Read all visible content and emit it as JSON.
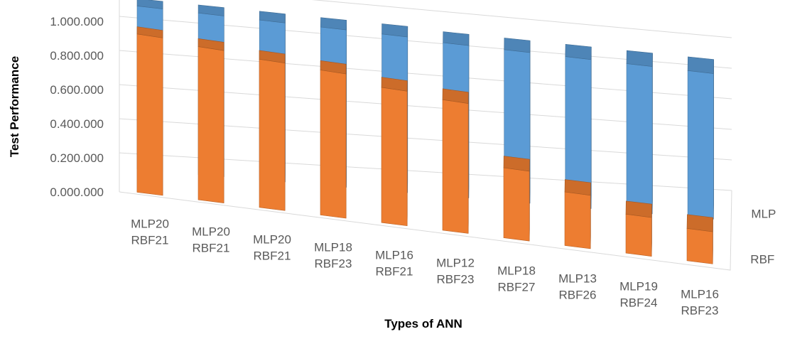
{
  "chart_data": {
    "type": "bar",
    "title": "",
    "xlabel": "Types of ANN",
    "ylabel": "Test Performance",
    "ylim": [
      0,
      1
    ],
    "yticks": [
      "0.000.000",
      "0.200.000",
      "0.400.000",
      "0.600.000",
      "0.800.000",
      "1.000.000"
    ],
    "categories": [
      [
        "MLP20",
        "RBF21"
      ],
      [
        "MLP20",
        "RBF21"
      ],
      [
        "MLP20",
        "RBF21"
      ],
      [
        "MLP18",
        "RBF23"
      ],
      [
        "MLP16",
        "RBF21"
      ],
      [
        "MLP12",
        "RBF23"
      ],
      [
        "MLP18",
        "RBF27"
      ],
      [
        "MLP13",
        "RBF26"
      ],
      [
        "MLP19",
        "RBF24"
      ],
      [
        "MLP16",
        "RBF23"
      ]
    ],
    "series": [
      {
        "name": "MLP",
        "values": [
          0.96,
          0.96,
          0.96,
          0.96,
          0.96,
          0.95,
          0.95,
          0.95,
          0.95,
          0.95
        ]
      },
      {
        "name": "RBF",
        "values": [
          0.93,
          0.91,
          0.89,
          0.88,
          0.83,
          0.81,
          0.44,
          0.34,
          0.25,
          0.21
        ]
      }
    ],
    "grid": true,
    "style": "3d-column",
    "colors": {
      "MLP": "#5b9bd5",
      "RBF": "#ed7d31"
    }
  }
}
